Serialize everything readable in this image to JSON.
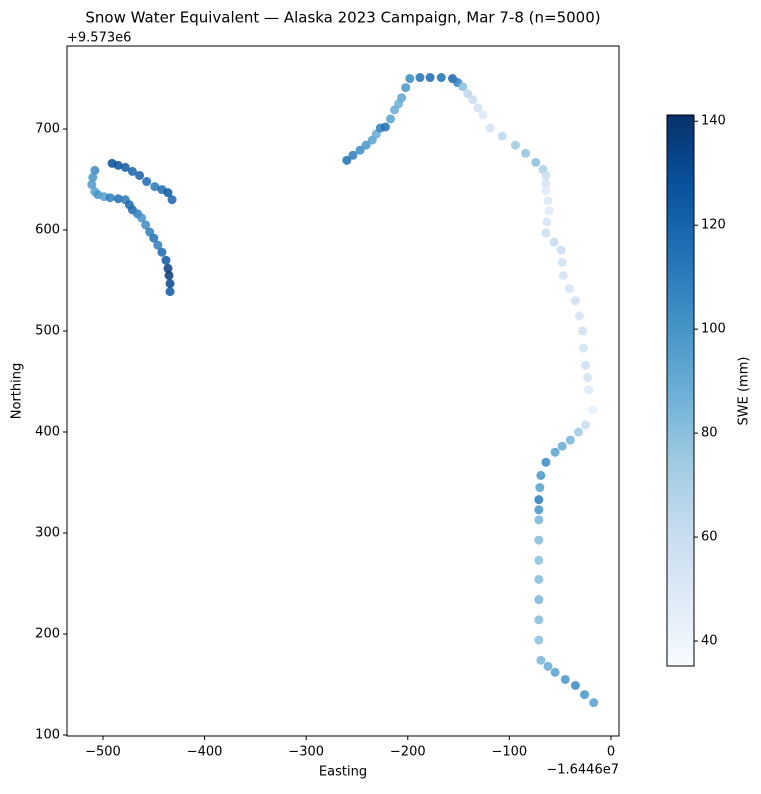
{
  "chart_data": {
    "type": "scatter",
    "title": "Snow Water Equivalent — Alaska 2023 Campaign, Mar 7-8 (n=5000)",
    "x_label": "Easting",
    "y_label": "Northing",
    "x_offset_label": "−1.6446e7",
    "y_offset_label": "+9.573e6",
    "xlim": [
      -535.4,
      7.9
    ],
    "ylim": [
      99,
      782.2
    ],
    "xticks": [
      {
        "value": -500,
        "label": "−500"
      },
      {
        "value": -400,
        "label": "−400"
      },
      {
        "value": -300,
        "label": "−300"
      },
      {
        "value": -200,
        "label": "−200"
      },
      {
        "value": -100,
        "label": "−100"
      },
      0
    ],
    "yticks": [
      100,
      200,
      300,
      400,
      500,
      600,
      700
    ],
    "colorbar_label": "SWE (mm)",
    "clim": [
      35.2,
      141.2
    ],
    "cticks": [
      40,
      60,
      80,
      100,
      120,
      140
    ],
    "colormap": "Blues",
    "cmap_colors": [
      "#f7fbff",
      "#deebf7",
      "#c6dbef",
      "#9ecae1",
      "#6baed6",
      "#4292c6",
      "#2171b5",
      "#08519c",
      "#08306b"
    ],
    "x": [
      -491,
      -485,
      -478,
      -471,
      -464,
      -457,
      -449,
      -442,
      -436,
      -432,
      -508,
      -510,
      -511,
      -508,
      -505,
      -499,
      -493,
      -485,
      -478,
      -474,
      -471,
      -466,
      -462,
      -458,
      -454,
      -450,
      -446,
      -442,
      -438,
      -436,
      -435,
      -434,
      -434,
      -260,
      -254,
      -247,
      -241,
      -235,
      -231,
      -227,
      -222,
      -217,
      -213,
      -209,
      -206,
      -202,
      -198,
      -188,
      -178,
      -167,
      -156,
      -151,
      -146,
      -141,
      -136,
      -131,
      -126,
      -119,
      -107,
      -94,
      -84,
      -74,
      -67,
      -64,
      -64,
      -64,
      -62,
      -61,
      -63,
      -64,
      -56,
      -49,
      -48,
      -47,
      -41,
      -35,
      -31,
      -28,
      -27,
      -25,
      -23,
      -22,
      -18,
      -25,
      -32,
      -40,
      -48,
      -55,
      -64,
      -69,
      -70,
      -71,
      -71,
      -71,
      -71,
      -71,
      -71,
      -71,
      -71,
      -71,
      -69,
      -62,
      -55,
      -45,
      -35,
      -26,
      -17
    ],
    "y": [
      666,
      664,
      662,
      658,
      654,
      648,
      643,
      640,
      637,
      630,
      659,
      652,
      645,
      638,
      635,
      633,
      632,
      631,
      630,
      625,
      620,
      616,
      612,
      605,
      598,
      592,
      585,
      578,
      570,
      562,
      555,
      547,
      539,
      669,
      674,
      679,
      684,
      689,
      695,
      701,
      702,
      710,
      719,
      725,
      731,
      741,
      750,
      751,
      751,
      751,
      750,
      746,
      742,
      735,
      729,
      721,
      714,
      701,
      693,
      684,
      676,
      667,
      660,
      654,
      646,
      639,
      629,
      619,
      608,
      597,
      588,
      580,
      568,
      555,
      542,
      530,
      515,
      500,
      483,
      466,
      454,
      442,
      422,
      407,
      400,
      392,
      386,
      380,
      370,
      357,
      345,
      333,
      323,
      313,
      293,
      273,
      254,
      234,
      214,
      194,
      174,
      168,
      162,
      155,
      149,
      140,
      132
    ],
    "c": [
      130,
      128,
      125,
      120,
      122,
      118,
      112,
      118,
      125,
      120,
      105,
      100,
      98,
      95,
      100,
      95,
      110,
      115,
      112,
      120,
      118,
      110,
      100,
      105,
      110,
      115,
      110,
      118,
      125,
      135,
      138,
      132,
      125,
      115,
      110,
      105,
      100,
      95,
      90,
      110,
      115,
      95,
      90,
      88,
      92,
      100,
      105,
      115,
      118,
      115,
      120,
      110,
      80,
      65,
      60,
      55,
      50,
      55,
      65,
      75,
      78,
      80,
      70,
      60,
      55,
      50,
      52,
      50,
      55,
      60,
      62,
      60,
      58,
      55,
      55,
      58,
      55,
      58,
      55,
      58,
      55,
      50,
      45,
      60,
      75,
      85,
      90,
      95,
      105,
      100,
      95,
      110,
      100,
      85,
      82,
      80,
      82,
      85,
      82,
      80,
      85,
      90,
      95,
      100,
      105,
      100,
      95
    ]
  }
}
